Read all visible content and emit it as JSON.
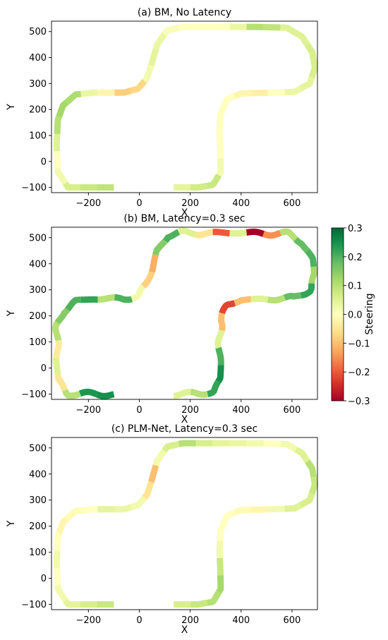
{
  "chart_data": [
    {
      "type": "line",
      "title": "(a) BM, No Latency",
      "xlabel": "X",
      "ylabel": "Y",
      "xlim": [
        -345,
        700
      ],
      "ylim": [
        -120,
        540
      ],
      "xticks": [
        -200,
        0,
        200,
        400,
        600
      ],
      "yticks": [
        -100,
        0,
        100,
        200,
        300,
        400,
        500
      ],
      "xtick_labels": [
        "−200",
        "0",
        "200",
        "400",
        "600"
      ],
      "ytick_labels": [
        "−100",
        "0",
        "100",
        "200",
        "300",
        "400",
        "500"
      ],
      "grid": false,
      "color_encoding": "Steering",
      "steering_segments": [
        0.09,
        0.08,
        0.06,
        0.02,
        0.0,
        0.05,
        0.1,
        0.12,
        0.11,
        0.03,
        -0.02,
        -0.08,
        -0.07,
        0.02,
        0.04,
        0.03,
        0.01,
        0.0,
        0.0,
        0.0,
        0.03,
        0.1,
        0.09,
        0.05,
        0.05,
        0.06,
        0.06,
        0.04,
        0.03,
        0.0,
        -0.03,
        -0.02,
        0.0,
        0.0,
        0.0,
        0.0,
        0.02,
        0.08,
        0.07,
        0.04
      ]
    },
    {
      "type": "line",
      "title": "(b) BM, Latency=0.3 sec",
      "xlabel": "X",
      "ylabel": "Y",
      "xlim": [
        -345,
        700
      ],
      "ylim": [
        -120,
        540
      ],
      "xticks": [
        -200,
        0,
        200,
        400,
        600
      ],
      "yticks": [
        -100,
        0,
        100,
        200,
        300,
        400,
        500
      ],
      "xtick_labels": [
        "−200",
        "0",
        "200",
        "400",
        "600"
      ],
      "ytick_labels": [
        "−100",
        "0",
        "100",
        "200",
        "300",
        "400",
        "500"
      ],
      "grid": false,
      "color_encoding": "Steering",
      "steering_segments": [
        0.25,
        0.24,
        0.1,
        -0.05,
        0.05,
        -0.04,
        0.1,
        0.15,
        0.2,
        0.22,
        0.1,
        0.2,
        0.02,
        -0.08,
        -0.12,
        0.15,
        0.2,
        0.05,
        -0.05,
        -0.2,
        0.05,
        -0.3,
        -0.15,
        0.1,
        0.18,
        0.2,
        0.12,
        0.22,
        0.18,
        0.1,
        0.05,
        -0.1,
        -0.22,
        -0.1,
        0.05,
        0.2,
        0.25,
        0.22,
        0.1,
        0.05
      ]
    },
    {
      "type": "line",
      "title": "(c) PLM-Net, Latency=0.3 sec",
      "xlabel": "X",
      "ylabel": "Y",
      "xlim": [
        -345,
        700
      ],
      "ylim": [
        -120,
        540
      ],
      "xticks": [
        -200,
        0,
        200,
        400,
        600
      ],
      "yticks": [
        -100,
        0,
        100,
        200,
        300,
        400,
        500
      ],
      "xtick_labels": [
        "−200",
        "0",
        "200",
        "400",
        "600"
      ],
      "ytick_labels": [
        "−100",
        "0",
        "100",
        "200",
        "300",
        "400",
        "500"
      ],
      "grid": false,
      "color_encoding": "Steering",
      "steering_segments": [
        0.08,
        0.06,
        0.04,
        0.02,
        0.0,
        0.02,
        0.0,
        -0.02,
        -0.01,
        0.0,
        0.04,
        0.03,
        0.02,
        -0.05,
        -0.1,
        0.02,
        0.06,
        0.1,
        0.06,
        0.04,
        0.03,
        0.02,
        0.0,
        0.02,
        0.05,
        0.1,
        0.08,
        0.06,
        0.05,
        0.02,
        -0.02,
        -0.01,
        0.0,
        0.0,
        0.02,
        0.08,
        0.12,
        0.1,
        0.08,
        0.06
      ]
    }
  ],
  "colorbar": {
    "label": "Steering",
    "min": -0.3,
    "max": 0.3,
    "colormap": "RdYlGn",
    "ticks": [
      0.3,
      0.2,
      0.1,
      0.0,
      -0.1,
      -0.2,
      -0.3
    ],
    "tick_labels": [
      "0.3",
      "0.2",
      "0.1",
      "0.0",
      "−0.1",
      "−0.2",
      "−0.3"
    ]
  }
}
